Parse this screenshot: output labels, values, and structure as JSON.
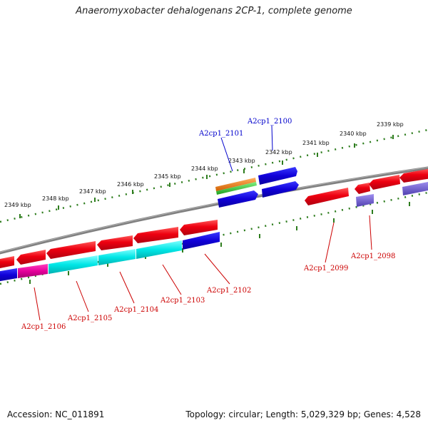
{
  "title": "Anaeromyxobacter dehalogenans 2CP-1, complete genome",
  "footer": {
    "accession": "Accession: NC_011891",
    "topology": "Topology: circular; Length: 5,029,329 bp; Genes: 4,528"
  },
  "scale_labels": [
    "2349 kbp",
    "2348 kbp",
    "2347 kbp",
    "2346 kbp",
    "2345 kbp",
    "2344 kbp",
    "2343 kbp",
    "2342 kbp",
    "2341 kbp",
    "2340 kbp",
    "2339 kbp"
  ],
  "colors": {
    "red": "#e8001c",
    "blue": "#1a00d8",
    "cyan": "#00e6e6",
    "magenta": "#e6009a",
    "orange": "#f07a10",
    "green": "#38c038",
    "lavender": "#7060d0",
    "label_red": "#cc0000",
    "label_blue": "#0000cc",
    "tick_green": "#2e7d1e",
    "backbone": "#808080"
  },
  "gene_labels": {
    "a2100": "A2cp1_2100",
    "a2101": "A2cp1_2101",
    "a2098": "A2cp1_2098",
    "a2099": "A2cp1_2099",
    "a2102": "A2cp1_2102",
    "a2103": "A2cp1_2103",
    "a2104": "A2cp1_2104",
    "a2105": "A2cp1_2105",
    "a2106": "A2cp1_2106"
  }
}
